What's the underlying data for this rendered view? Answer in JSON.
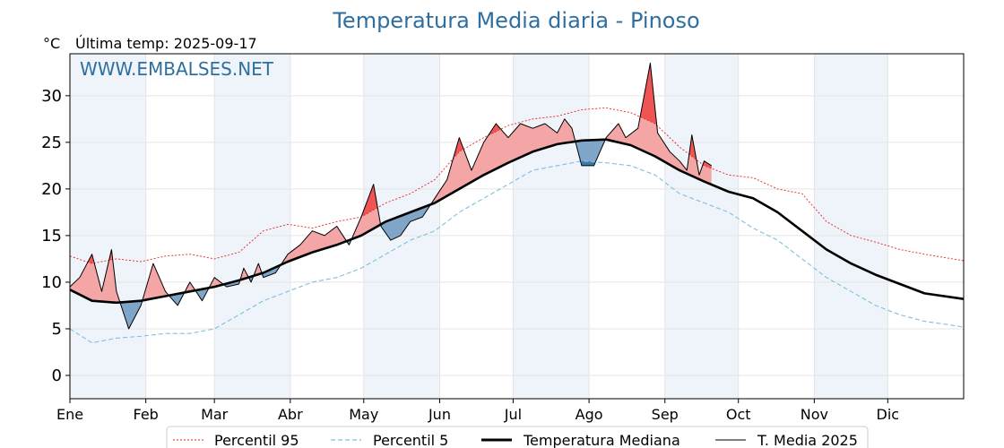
{
  "chart_data": {
    "type": "line",
    "title": "Temperatura Media diaria - Pinoso",
    "ylabel": "°C",
    "last_temp_label": "Última temp: 2025-09-17",
    "watermark": "WWW.EMBALSES.NET",
    "ylim": [
      -2.5,
      34.5
    ],
    "yticks": [
      0,
      5,
      10,
      15,
      20,
      25,
      30
    ],
    "xlim": [
      1,
      366
    ],
    "months": [
      "Ene",
      "Feb",
      "Mar",
      "Abr",
      "May",
      "Jun",
      "Jul",
      "Ago",
      "Sep",
      "Oct",
      "Nov",
      "Dic"
    ],
    "month_start_days": [
      1,
      32,
      60,
      91,
      121,
      152,
      182,
      213,
      244,
      274,
      305,
      335
    ],
    "shaded_month_indices": [
      0,
      2,
      4,
      6,
      8,
      10
    ],
    "grid": true,
    "legend_position": "bottom",
    "colors": {
      "p95": "#e8231e",
      "p5": "#7fbfe0",
      "median": "#000000",
      "current": "#000000",
      "above_fill": "#f4a6a6",
      "above_strong": "#ef5555",
      "below_fill": "#7fa6c8",
      "below_strong": "#3d78a8",
      "month_shade": "#eef4fa",
      "title": "#2f6f9f"
    },
    "series": [
      {
        "name": "Percentil 95",
        "style": "dotted-red",
        "points": [
          [
            1,
            12.8
          ],
          [
            10,
            12.0
          ],
          [
            20,
            12.5
          ],
          [
            30,
            12.2
          ],
          [
            40,
            12.8
          ],
          [
            50,
            13.0
          ],
          [
            60,
            12.5
          ],
          [
            70,
            13.2
          ],
          [
            80,
            15.5
          ],
          [
            90,
            16.2
          ],
          [
            100,
            15.8
          ],
          [
            110,
            16.5
          ],
          [
            120,
            17.0
          ],
          [
            130,
            18.5
          ],
          [
            140,
            19.5
          ],
          [
            150,
            21.0
          ],
          [
            160,
            24.0
          ],
          [
            170,
            25.5
          ],
          [
            180,
            26.8
          ],
          [
            190,
            27.5
          ],
          [
            200,
            27.8
          ],
          [
            210,
            28.5
          ],
          [
            220,
            28.7
          ],
          [
            230,
            28.2
          ],
          [
            240,
            27.0
          ],
          [
            250,
            24.5
          ],
          [
            260,
            22.5
          ],
          [
            270,
            21.5
          ],
          [
            280,
            21.2
          ],
          [
            290,
            20.0
          ],
          [
            300,
            19.5
          ],
          [
            310,
            16.5
          ],
          [
            320,
            15.0
          ],
          [
            330,
            14.3
          ],
          [
            340,
            13.5
          ],
          [
            350,
            13.0
          ],
          [
            366,
            12.3
          ]
        ]
      },
      {
        "name": "Percentil 5",
        "style": "dashed-blue",
        "points": [
          [
            1,
            5.0
          ],
          [
            10,
            3.5
          ],
          [
            20,
            4.0
          ],
          [
            30,
            4.2
          ],
          [
            40,
            4.5
          ],
          [
            50,
            4.5
          ],
          [
            60,
            5.0
          ],
          [
            70,
            6.5
          ],
          [
            80,
            8.0
          ],
          [
            90,
            9.0
          ],
          [
            100,
            10.0
          ],
          [
            110,
            10.5
          ],
          [
            120,
            11.5
          ],
          [
            130,
            13.0
          ],
          [
            140,
            14.5
          ],
          [
            150,
            15.5
          ],
          [
            160,
            17.5
          ],
          [
            170,
            19.0
          ],
          [
            180,
            20.5
          ],
          [
            190,
            22.0
          ],
          [
            200,
            22.5
          ],
          [
            210,
            23.0
          ],
          [
            220,
            22.8
          ],
          [
            230,
            22.5
          ],
          [
            240,
            21.5
          ],
          [
            250,
            19.5
          ],
          [
            260,
            18.5
          ],
          [
            270,
            17.5
          ],
          [
            280,
            15.8
          ],
          [
            290,
            14.5
          ],
          [
            300,
            12.5
          ],
          [
            310,
            10.5
          ],
          [
            320,
            9.0
          ],
          [
            330,
            7.5
          ],
          [
            340,
            6.5
          ],
          [
            350,
            5.8
          ],
          [
            366,
            5.2
          ]
        ]
      },
      {
        "name": "Temperatura Mediana",
        "style": "thick-black",
        "points": [
          [
            1,
            9.2
          ],
          [
            10,
            8.0
          ],
          [
            20,
            7.8
          ],
          [
            30,
            8.0
          ],
          [
            40,
            8.5
          ],
          [
            50,
            9.0
          ],
          [
            60,
            9.5
          ],
          [
            70,
            10.2
          ],
          [
            80,
            11.0
          ],
          [
            90,
            12.2
          ],
          [
            100,
            13.2
          ],
          [
            110,
            14.0
          ],
          [
            120,
            15.0
          ],
          [
            130,
            16.5
          ],
          [
            140,
            17.5
          ],
          [
            150,
            18.5
          ],
          [
            160,
            20.0
          ],
          [
            170,
            21.5
          ],
          [
            180,
            22.8
          ],
          [
            190,
            24.0
          ],
          [
            200,
            24.8
          ],
          [
            210,
            25.2
          ],
          [
            220,
            25.3
          ],
          [
            230,
            24.7
          ],
          [
            240,
            23.5
          ],
          [
            250,
            22.0
          ],
          [
            260,
            20.8
          ],
          [
            270,
            19.7
          ],
          [
            280,
            19.0
          ],
          [
            290,
            17.5
          ],
          [
            300,
            15.5
          ],
          [
            310,
            13.5
          ],
          [
            320,
            12.0
          ],
          [
            330,
            10.8
          ],
          [
            340,
            9.8
          ],
          [
            350,
            8.8
          ],
          [
            366,
            8.2
          ]
        ]
      },
      {
        "name": "T. Media 2025",
        "style": "thin-black",
        "points": [
          [
            1,
            9.5
          ],
          [
            5,
            10.5
          ],
          [
            10,
            13.0
          ],
          [
            14,
            9.0
          ],
          [
            18,
            13.5
          ],
          [
            20,
            9.0
          ],
          [
            25,
            5.0
          ],
          [
            30,
            7.5
          ],
          [
            35,
            12.0
          ],
          [
            40,
            9.0
          ],
          [
            45,
            7.5
          ],
          [
            50,
            10.0
          ],
          [
            55,
            8.0
          ],
          [
            60,
            10.5
          ],
          [
            65,
            9.5
          ],
          [
            70,
            9.8
          ],
          [
            72,
            11.5
          ],
          [
            75,
            10.0
          ],
          [
            78,
            12.0
          ],
          [
            80,
            10.5
          ],
          [
            85,
            11.0
          ],
          [
            90,
            13.0
          ],
          [
            95,
            14.0
          ],
          [
            100,
            15.5
          ],
          [
            105,
            15.0
          ],
          [
            110,
            16.0
          ],
          [
            115,
            14.0
          ],
          [
            120,
            17.0
          ],
          [
            125,
            20.5
          ],
          [
            128,
            16.0
          ],
          [
            132,
            14.5
          ],
          [
            136,
            15.0
          ],
          [
            140,
            16.5
          ],
          [
            145,
            17.0
          ],
          [
            150,
            19.0
          ],
          [
            155,
            21.0
          ],
          [
            160,
            25.5
          ],
          [
            165,
            22.0
          ],
          [
            170,
            25.0
          ],
          [
            175,
            27.0
          ],
          [
            180,
            25.5
          ],
          [
            185,
            27.0
          ],
          [
            190,
            26.5
          ],
          [
            195,
            27.0
          ],
          [
            200,
            26.0
          ],
          [
            203,
            27.5
          ],
          [
            206,
            26.5
          ],
          [
            210,
            22.5
          ],
          [
            215,
            22.5
          ],
          [
            220,
            25.5
          ],
          [
            225,
            27.0
          ],
          [
            228,
            25.5
          ],
          [
            233,
            26.5
          ],
          [
            238,
            33.5
          ],
          [
            241,
            26.0
          ],
          [
            246,
            24.0
          ],
          [
            250,
            23.0
          ],
          [
            253,
            22.0
          ],
          [
            255,
            25.8
          ],
          [
            258,
            21.5
          ],
          [
            260,
            23.0
          ],
          [
            263,
            22.5
          ]
        ]
      }
    ],
    "legend": [
      "Percentil 95",
      "Percentil 5",
      "Temperatura Mediana",
      "T. Media 2025"
    ]
  }
}
